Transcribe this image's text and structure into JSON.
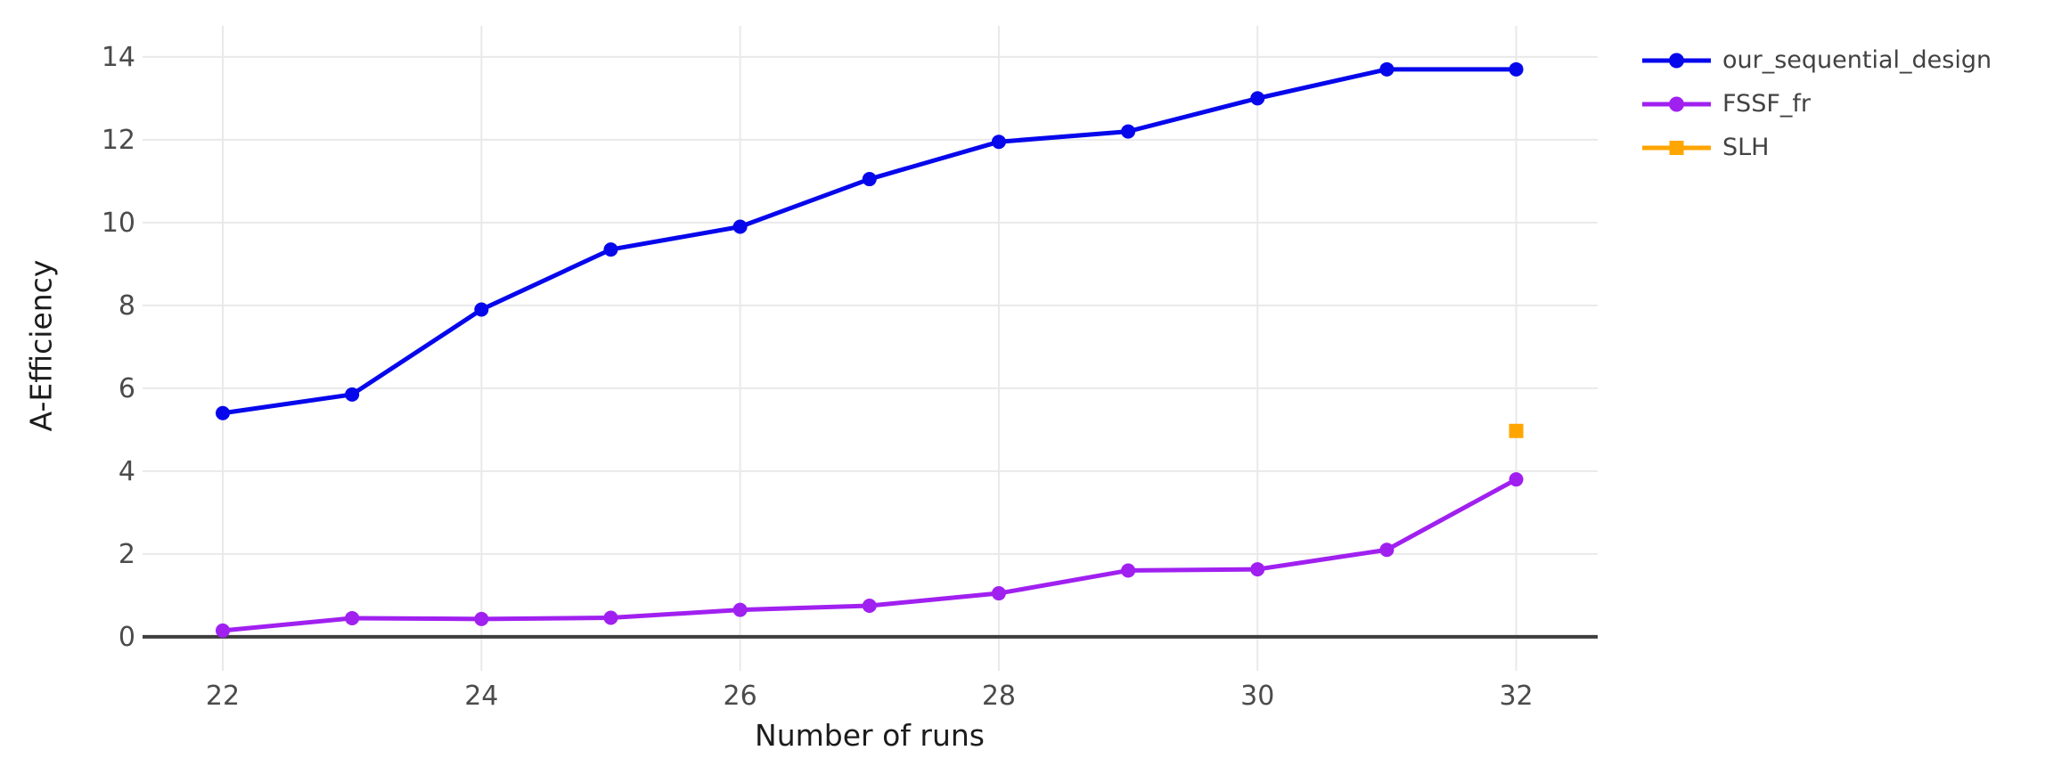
{
  "chart_data": {
    "type": "line",
    "title": "",
    "xlabel": "Number of runs",
    "ylabel": "A-Efficiency",
    "xlim": [
      21.38,
      32.63
    ],
    "ylim": [
      -0.82,
      14.75
    ],
    "xticks": [
      22,
      24,
      26,
      28,
      30,
      32
    ],
    "yticks": [
      0,
      2,
      4,
      6,
      8,
      10,
      12,
      14
    ],
    "grid": true,
    "legend_position": "outside-top-right",
    "zero_line": {
      "y": 0,
      "color": "#3d3d3d"
    },
    "series": [
      {
        "name": "our_sequential_design",
        "color": "#0707ec",
        "marker": "circle",
        "x": [
          22,
          23,
          24,
          25,
          26,
          27,
          28,
          29,
          30,
          31,
          32
        ],
        "y": [
          5.4,
          5.85,
          7.9,
          9.35,
          9.9,
          11.05,
          11.95,
          12.2,
          13.0,
          13.7,
          13.7
        ]
      },
      {
        "name": "FSSF_fr",
        "color": "#a020f0",
        "marker": "circle",
        "x": [
          22,
          23,
          24,
          25,
          26,
          27,
          28,
          29,
          30,
          31,
          32
        ],
        "y": [
          0.15,
          0.45,
          0.43,
          0.46,
          0.65,
          0.75,
          1.05,
          1.6,
          1.63,
          2.1,
          3.8
        ]
      },
      {
        "name": "SLH",
        "color": "#ffa500",
        "marker": "square",
        "x": [
          32
        ],
        "y": [
          4.97
        ]
      }
    ],
    "colors": {
      "background": "#ffffff",
      "grid": "#e9e9e9",
      "tick_label": "#4b4b4b",
      "axis_title": "#1c1c1c",
      "legend_text": "#424242"
    }
  }
}
